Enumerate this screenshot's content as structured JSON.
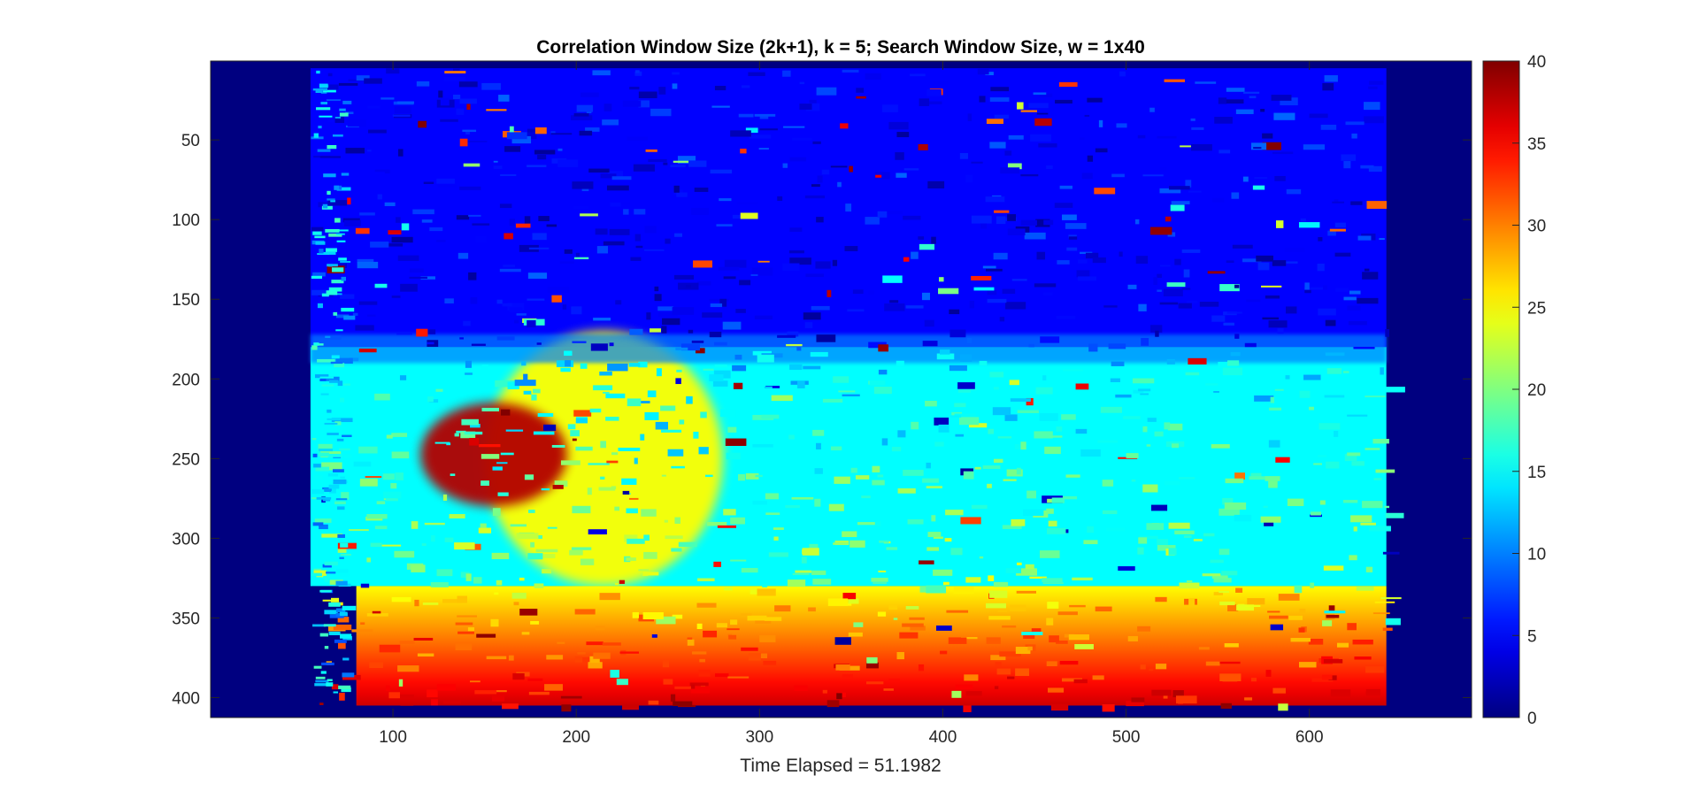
{
  "chart_data": {
    "type": "heatmap",
    "title": "Correlation Window Size (2k+1), k = 5; Search Window Size, w = 1x40",
    "xlabel": "Time Elapsed = 51.1982",
    "ylabel": "",
    "xlim": [
      0.5,
      688.5
    ],
    "ylim": [
      0.5,
      412.5
    ],
    "y_reversed": true,
    "grid": false,
    "colormap": "jet",
    "x_ticks": [
      100,
      200,
      300,
      400,
      500,
      600
    ],
    "x_tick_labels": [
      "100",
      "200",
      "300",
      "400",
      "500",
      "600"
    ],
    "y_ticks": [
      50,
      100,
      150,
      200,
      250,
      300,
      350,
      400
    ],
    "y_tick_labels": [
      "50",
      "100",
      "150",
      "200",
      "250",
      "300",
      "350",
      "400"
    ],
    "colorbar": {
      "position": "right",
      "limits": [
        0,
        40
      ],
      "ticks": [
        0,
        5,
        10,
        15,
        20,
        25,
        30,
        35,
        40
      ],
      "tick_labels": [
        "0",
        "5",
        "10",
        "15",
        "20",
        "25",
        "30",
        "35",
        "40"
      ]
    },
    "valid_region": {
      "x": [
        55,
        642
      ],
      "y": [
        5,
        405
      ]
    },
    "background_value": 0,
    "regions": [
      {
        "label": "upper background / sky",
        "x": [
          55,
          642
        ],
        "y": [
          5,
          180
        ],
        "approx_value": 5
      },
      {
        "label": "middle scene",
        "x": [
          55,
          642
        ],
        "y": [
          180,
          330
        ],
        "approx_value": 15
      },
      {
        "label": "person / foreground object",
        "x": [
          150,
          280
        ],
        "y": [
          170,
          330
        ],
        "approx_value": 25
      },
      {
        "label": "dark red cluster",
        "x": [
          115,
          195
        ],
        "y": [
          215,
          280
        ],
        "approx_value": 38
      },
      {
        "label": "bottom floor ramp",
        "x": [
          80,
          642
        ],
        "y": [
          330,
          405
        ],
        "value_range": [
          25,
          37
        ]
      }
    ],
    "colors": {
      "background": "#00008f",
      "axes_text": "#262626",
      "title": "#000000"
    }
  }
}
